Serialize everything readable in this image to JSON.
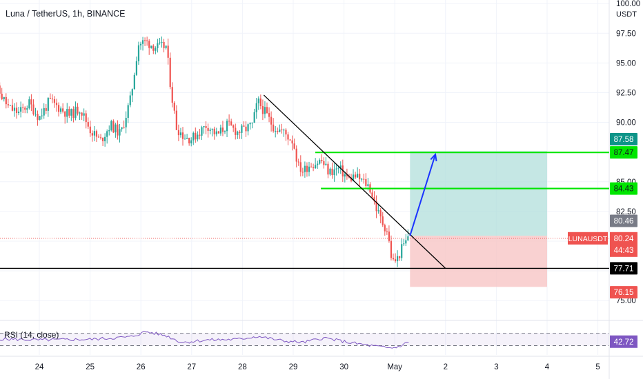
{
  "title": "Luna / TetherUS, 1h, BINANCE",
  "currency": "USDT",
  "colors": {
    "up": "#26a69a",
    "down": "#ef5350",
    "level_line": "#00e600",
    "level_label_bg": "#00e600",
    "target_label_bg": "#0d9488",
    "stop_label_bg": "#ef5350",
    "profit_zone": "#b2dfdb",
    "loss_zone": "#f8c6c6",
    "arrow": "#1a33ff",
    "rsi_line": "#7e57c2",
    "rsi_badge": "#7e57c2",
    "price_badge": "#ef5350",
    "entry_badge": "#787b86"
  },
  "price_axis": {
    "ticks": [
      "100.00",
      "97.50",
      "95.00",
      "92.50",
      "90.00",
      "87.50",
      "85.00",
      "82.50",
      "80.00",
      "77.50",
      "75.00"
    ],
    "min": 73.5,
    "max": 100.3
  },
  "badges": {
    "target": "87.58",
    "upper_level": "87.47",
    "lower_level": "84.43",
    "entry": "80.46",
    "symbol": "LUNAUSDT",
    "last_price": "80.24",
    "countdown": "44:43",
    "support": "77.71",
    "stop": "76.15",
    "rsi_value": "42.72"
  },
  "rsi": {
    "label": "RSI (14, close)"
  },
  "time_axis": {
    "labels": [
      "24",
      "25",
      "26",
      "27",
      "28",
      "29",
      "30",
      "May",
      "2",
      "3",
      "4",
      "5"
    ]
  },
  "chart_data": {
    "type": "candlestick",
    "title": "Luna / TetherUS, 1h, BINANCE",
    "interval": "1h",
    "exchange": "BINANCE",
    "ylim": [
      73.5,
      100.3
    ],
    "x_ticks": [
      "24",
      "25",
      "26",
      "27",
      "28",
      "29",
      "30",
      "May",
      "2",
      "3",
      "4",
      "5"
    ],
    "anchors": [
      [
        "23",
        93.5
      ],
      [
        "23.2",
        92.6
      ],
      [
        "23.4",
        91.2
      ],
      [
        "23.6",
        90.8
      ],
      [
        "23.8",
        91.6
      ],
      [
        "24",
        90.4
      ],
      [
        "24.2",
        91.8
      ],
      [
        "24.4",
        91.2
      ],
      [
        "24.6",
        90.6
      ],
      [
        "24.8",
        91.2
      ],
      [
        "25",
        89.4
      ],
      [
        "25.2",
        88.4
      ],
      [
        "25.4",
        89.8
      ],
      [
        "25.6",
        89.0
      ],
      [
        "25.8",
        92.0
      ],
      [
        "25.95",
        96.6
      ],
      [
        "26.1",
        96.8
      ],
      [
        "26.3",
        96.3
      ],
      [
        "26.5",
        96.4
      ],
      [
        "26.6",
        92.5
      ],
      [
        "26.7",
        89.6
      ],
      [
        "26.85",
        88.8
      ],
      [
        "27",
        88.6
      ],
      [
        "27.3",
        89.8
      ],
      [
        "27.5",
        88.9
      ],
      [
        "27.7",
        89.8
      ],
      [
        "27.9",
        89.2
      ],
      [
        "28.05",
        89.4
      ],
      [
        "28.2",
        89.8
      ],
      [
        "28.3",
        91.8
      ],
      [
        "28.45",
        90.8
      ],
      [
        "28.6",
        89.7
      ],
      [
        "28.8",
        89.2
      ],
      [
        "29",
        88.4
      ],
      [
        "29.1",
        86.3
      ],
      [
        "29.2",
        85.9
      ],
      [
        "29.3",
        86.4
      ],
      [
        "29.45",
        86.6
      ],
      [
        "29.55",
        86.8
      ],
      [
        "29.7",
        85.8
      ],
      [
        "29.9",
        86.1
      ],
      [
        "30.1",
        85.2
      ],
      [
        "30.2",
        85.5
      ],
      [
        "30.35",
        85.1
      ],
      [
        "30.5",
        84.6
      ],
      [
        "30.65",
        82.6
      ],
      [
        "30.75",
        81.6
      ],
      [
        "30.85",
        80.9
      ],
      [
        "30.95",
        78.2
      ],
      [
        "31.05",
        78.5
      ],
      [
        "31.15",
        79.5
      ],
      [
        "31.3",
        80.4
      ]
    ],
    "rsi": {
      "ylim": [
        0,
        100
      ],
      "bands": [
        30,
        70
      ],
      "anchors": [
        [
          "23",
          52
        ],
        [
          "24",
          48
        ],
        [
          "25",
          50
        ],
        [
          "25.8",
          58
        ],
        [
          "26.1",
          75
        ],
        [
          "26.5",
          62
        ],
        [
          "26.8",
          40
        ],
        [
          "27.3",
          48
        ],
        [
          "27.9",
          50
        ],
        [
          "28.3",
          60
        ],
        [
          "28.8",
          45
        ],
        [
          "29.2",
          40
        ],
        [
          "29.6",
          55
        ],
        [
          "30.1",
          40
        ],
        [
          "30.6",
          28
        ],
        [
          "30.9",
          22
        ],
        [
          "31.05",
          25
        ],
        [
          "31.3",
          42.72
        ]
      ]
    },
    "annotations": {
      "trendline": {
        "from": [
          "28.42",
          92.3
        ],
        "to": [
          "32.0",
          77.71
        ]
      },
      "horizontal_levels": [
        87.47,
        84.43,
        77.71
      ],
      "long_position": {
        "entry": 80.46,
        "target": 87.58,
        "stop": 76.15,
        "from": "31.3",
        "to": "34.0"
      },
      "arrow": {
        "from": [
          "31.3",
          80.46
        ],
        "to": [
          "31.8",
          87.3
        ]
      }
    }
  }
}
